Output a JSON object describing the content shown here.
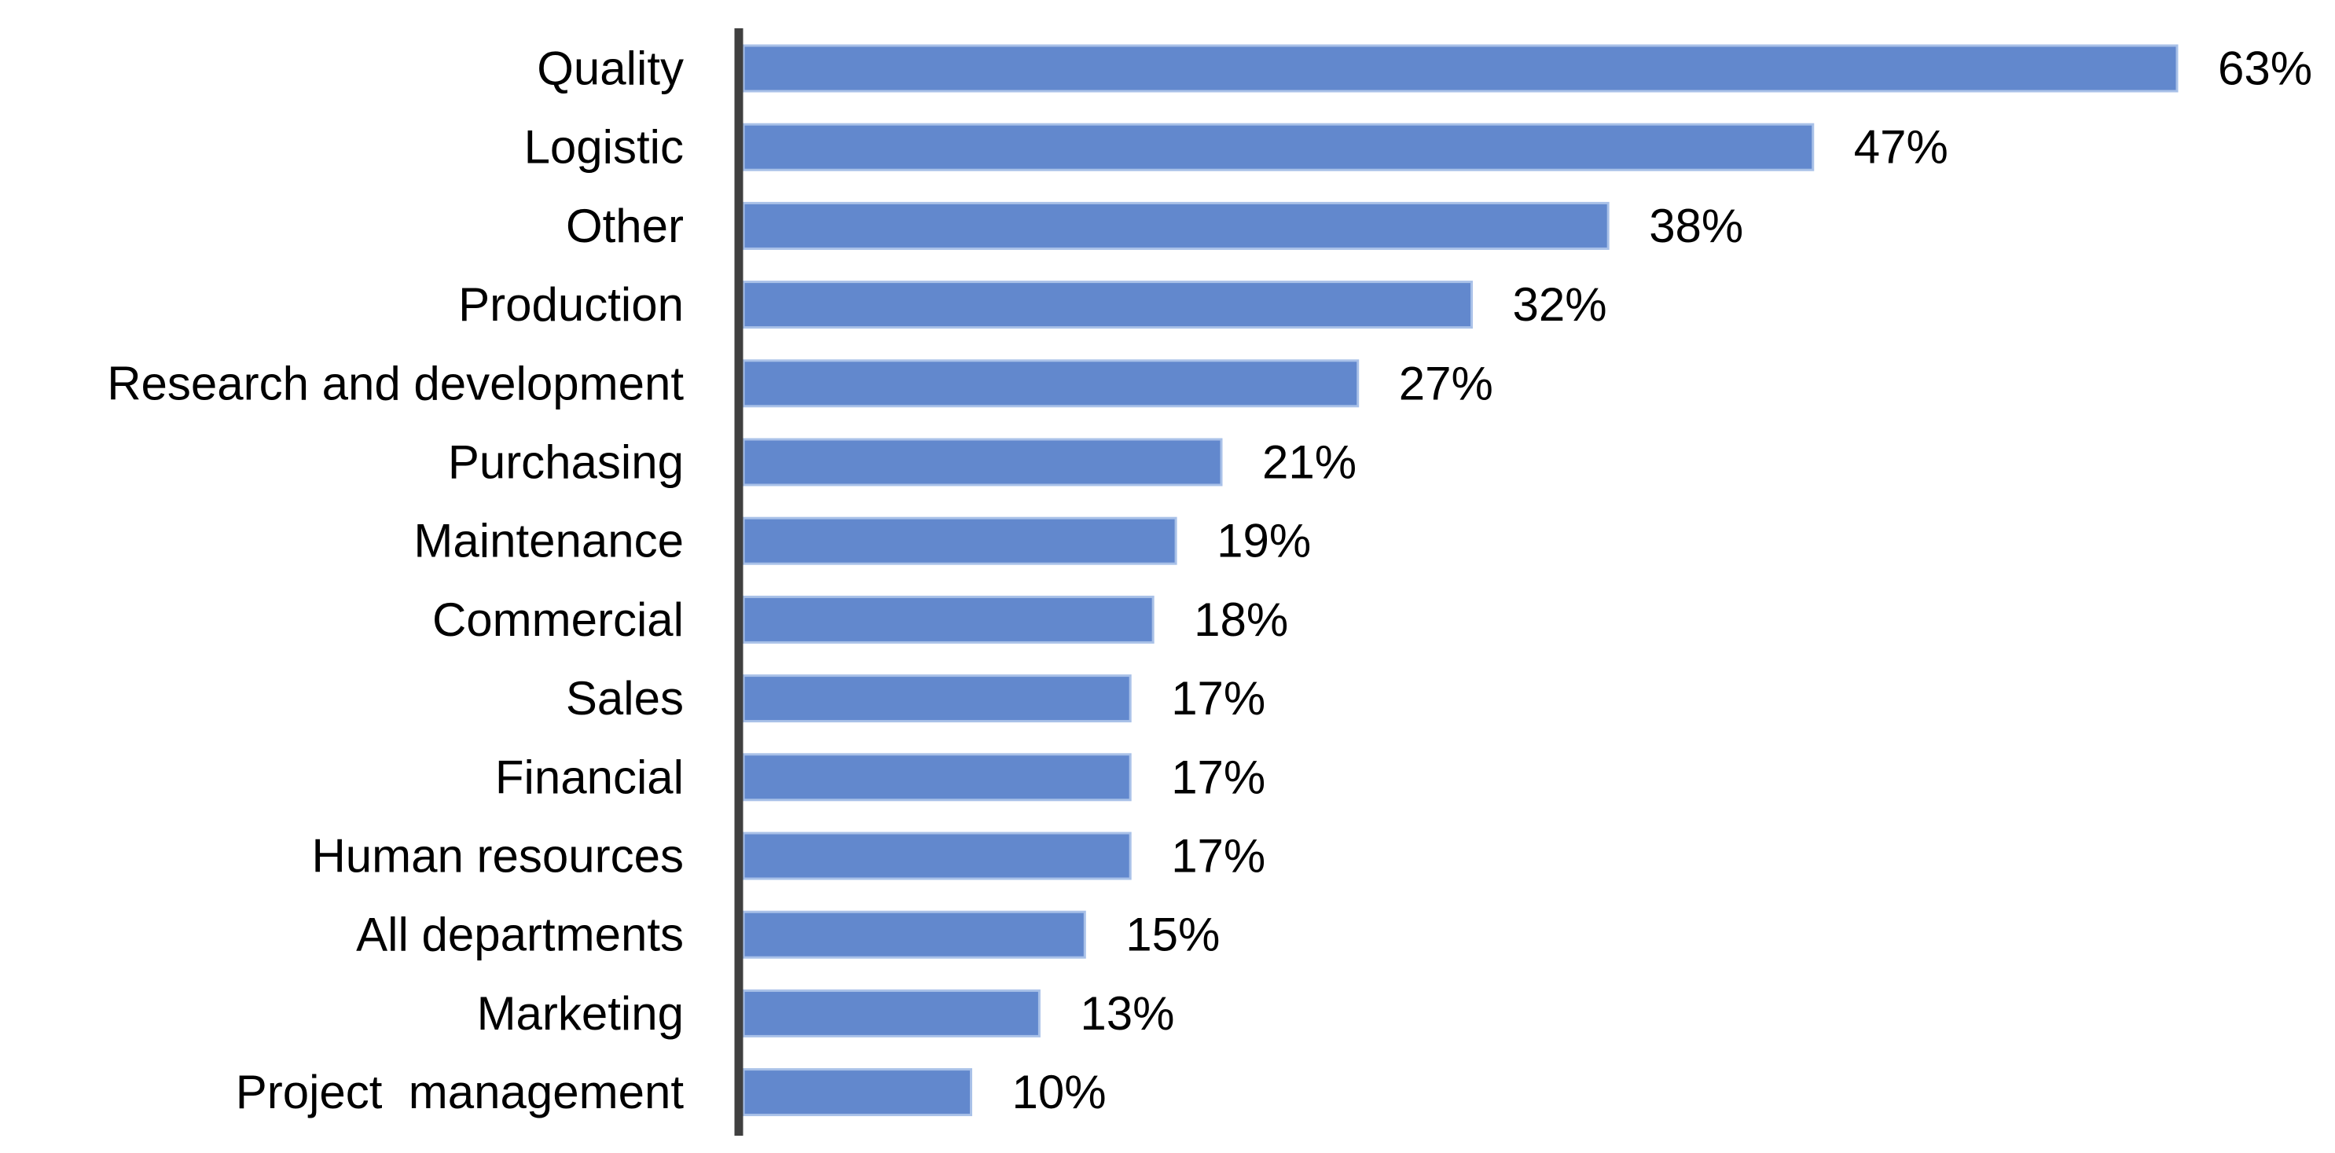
{
  "chart_data": {
    "type": "bar",
    "orientation": "horizontal",
    "categories": [
      "Quality",
      "Logistic",
      "Other",
      "Production",
      "Research and development",
      "Purchasing",
      "Maintenance",
      "Commercial",
      "Sales",
      "Financial",
      "Human resources",
      "All departments",
      "Marketing",
      "Project  management"
    ],
    "values": [
      63,
      47,
      38,
      32,
      27,
      21,
      19,
      18,
      17,
      17,
      17,
      15,
      13,
      10
    ],
    "data_labels": [
      "63%",
      "47%",
      "38%",
      "32%",
      "27%",
      "21%",
      "19%",
      "18%",
      "17%",
      "17%",
      "17%",
      "15%",
      "13%",
      "10%"
    ],
    "value_unit": "%",
    "title": "",
    "xlabel": "",
    "ylabel": "",
    "xlim": [
      0,
      63
    ],
    "grid": false,
    "legend": "none",
    "colors": {
      "bar_fill": "#6288CD",
      "bar_stroke": "#A9C1E8",
      "axis": "#404040",
      "text": "#000000"
    }
  }
}
